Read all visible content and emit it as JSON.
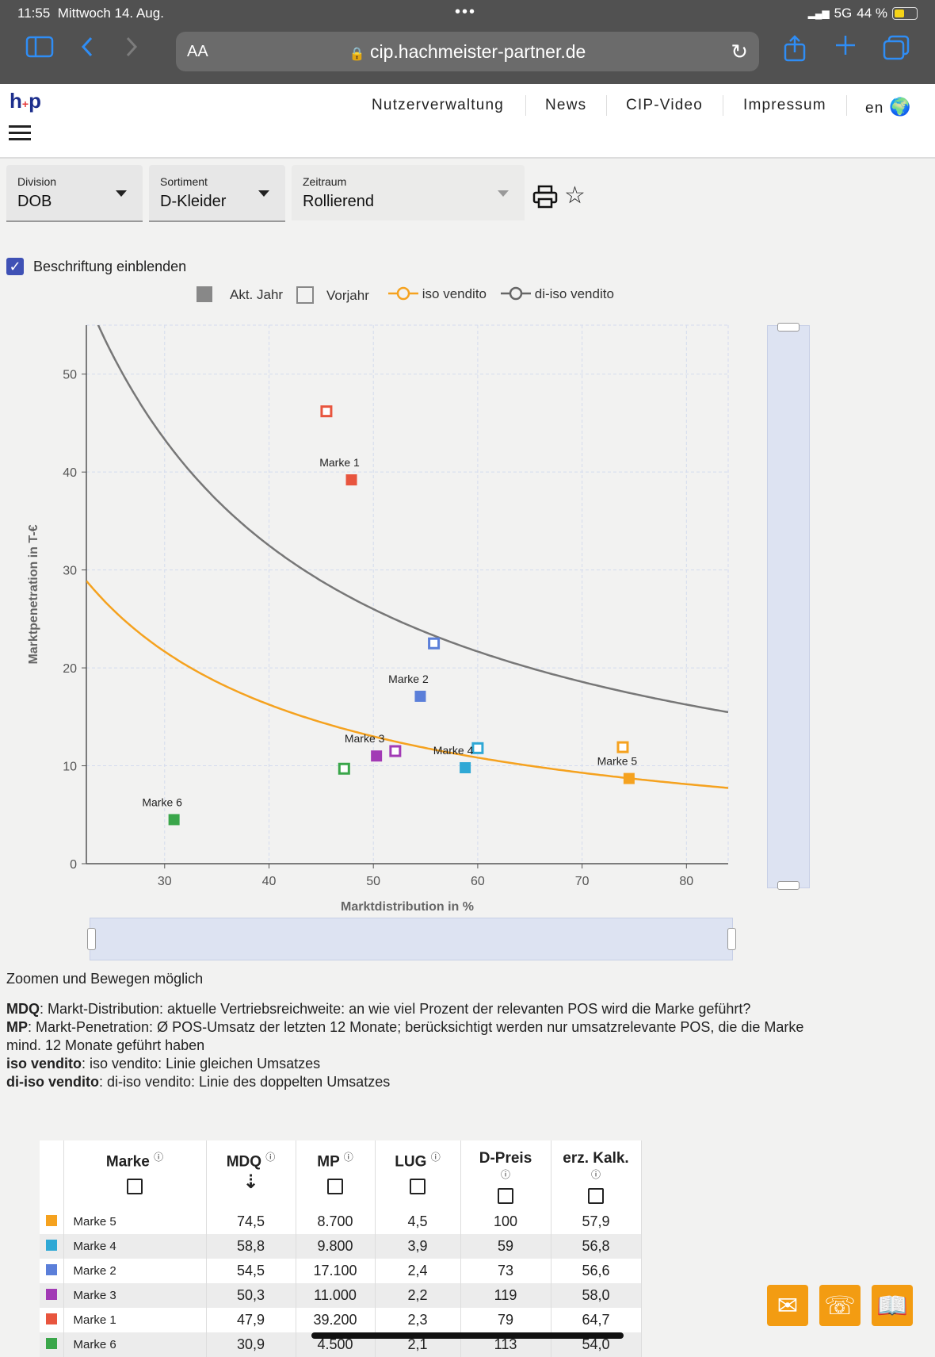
{
  "status": {
    "time": "11:55",
    "date": "Mittwoch 14. Aug.",
    "network": "5G",
    "battery": "44 %"
  },
  "browser": {
    "aa": "AA",
    "url": "cip.hachmeister-partner.de"
  },
  "logo": {
    "text": "h",
    "plus": "+",
    "text2": "p"
  },
  "nav": {
    "items": [
      "Nutzerverwaltung",
      "News",
      "CIP-Video",
      "Impressum",
      "en"
    ]
  },
  "filters": [
    {
      "label": "Division",
      "value": "DOB"
    },
    {
      "label": "Sortiment",
      "value": "D-Kleider"
    },
    {
      "label": "Zeitraum",
      "value": "Rollierend"
    }
  ],
  "checkbox": {
    "label": "Beschriftung einblenden"
  },
  "legend": {
    "akt": "Akt. Jahr",
    "vorjahr": "Vorjahr",
    "iso": "iso vendito",
    "diiso": "di-iso vendito"
  },
  "colors": {
    "iso": "#f5a21f",
    "diiso": "#777777",
    "accent": "#3f51b5"
  },
  "chart_data": {
    "type": "scatter",
    "xlabel": "Marktdistribution in %",
    "ylabel": "Marktpenetration in T-€",
    "xlim": [
      22.5,
      84
    ],
    "ylim": [
      0,
      55
    ],
    "xticks": [
      30,
      40,
      50,
      60,
      70,
      80
    ],
    "yticks": [
      0,
      10,
      20,
      30,
      40,
      50
    ],
    "series": [
      {
        "name": "Marke 1",
        "color": "#e8553e",
        "x": 47.9,
        "y": 39.2,
        "prev_x": 45.5,
        "prev_y": 46.2
      },
      {
        "name": "Marke 2",
        "color": "#5b7fd9",
        "x": 54.5,
        "y": 17.1,
        "prev_x": 55.8,
        "prev_y": 22.5
      },
      {
        "name": "Marke 3",
        "color": "#a23ab5",
        "x": 50.3,
        "y": 11.0,
        "prev_x": 52.1,
        "prev_y": 11.5
      },
      {
        "name": "Marke 4",
        "color": "#2fa8d5",
        "x": 58.8,
        "y": 9.8,
        "prev_x": 60.0,
        "prev_y": 11.8
      },
      {
        "name": "Marke 5",
        "color": "#f5a21f",
        "x": 74.5,
        "y": 8.7,
        "prev_x": 73.9,
        "prev_y": 11.9
      },
      {
        "name": "Marke 6",
        "color": "#3aa64a",
        "x": 30.9,
        "y": 4.5,
        "prev_x": 47.2,
        "prev_y": 9.7
      }
    ],
    "iso_vendito": 650,
    "di_iso_vendito": 1300
  },
  "notes": {
    "zoom": "Zoomen und Bewegen möglich",
    "mdq_key": "MDQ",
    "mdq_text": ": Markt-Distribution: aktuelle Vertriebsreichweite: an wie viel Prozent der relevanten POS wird die Marke geführt?",
    "mp_key": "MP",
    "mp_text": ": Markt-Penetration: Ø POS-Umsatz der letzten 12 Monate; berücksichtigt werden nur umsatzrelevante POS, die die Marke mind. 12 Monate geführt haben",
    "iso_key": "iso vendito",
    "iso_text": ": iso vendito: Linie gleichen Umsatzes",
    "diiso_key": "di-iso vendito",
    "diiso_text": ": di-iso vendito: Linie des doppelten Umsatzes"
  },
  "table": {
    "headers": [
      "Marke",
      "MDQ",
      "MP",
      "LUG",
      "D-Preis",
      "erz. Kalk."
    ],
    "sort_icon": "⇣",
    "rows": [
      {
        "color": "#f5a21f",
        "name": "Marke 5",
        "mdq": "74,5",
        "mp": "8.700",
        "lug": "4,5",
        "preis": "100",
        "kalk": "57,9"
      },
      {
        "color": "#2fa8d5",
        "name": "Marke 4",
        "mdq": "58,8",
        "mp": "9.800",
        "lug": "3,9",
        "preis": "59",
        "kalk": "56,8"
      },
      {
        "color": "#5b7fd9",
        "name": "Marke 2",
        "mdq": "54,5",
        "mp": "17.100",
        "lug": "2,4",
        "preis": "73",
        "kalk": "56,6"
      },
      {
        "color": "#a23ab5",
        "name": "Marke 3",
        "mdq": "50,3",
        "mp": "11.000",
        "lug": "2,2",
        "preis": "119",
        "kalk": "58,0"
      },
      {
        "color": "#e8553e",
        "name": "Marke 1",
        "mdq": "47,9",
        "mp": "39.200",
        "lug": "2,3",
        "preis": "79",
        "kalk": "64,7"
      },
      {
        "color": "#3aa64a",
        "name": "Marke 6",
        "mdq": "30,9",
        "mp": "4.500",
        "lug": "2,1",
        "preis": "113",
        "kalk": "54,0"
      }
    ]
  }
}
